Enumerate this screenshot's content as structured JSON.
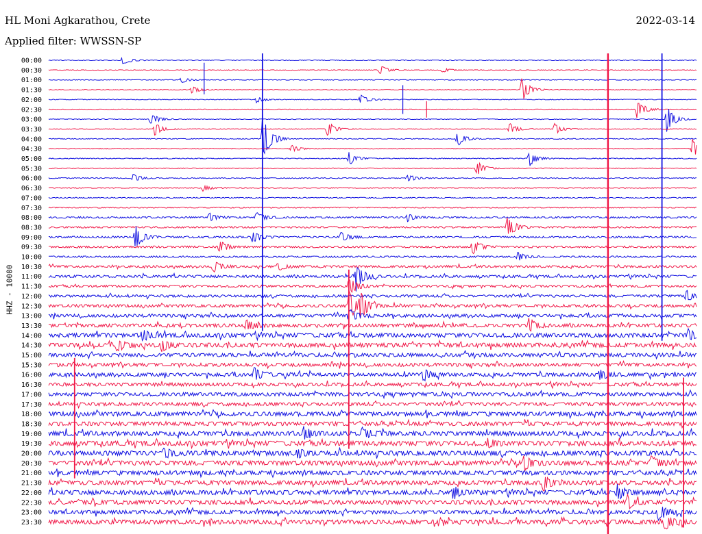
{
  "header": {
    "station": "HL Moni Agkarathou, Crete",
    "date": "2022-03-14",
    "filter": "Applied filter: WWSSN-SP",
    "channel": "HHZ - 10000"
  },
  "colors": {
    "even_row": "#1010e0",
    "odd_row": "#f01848"
  },
  "chart_data": {
    "type": "line",
    "title": "HL Moni Agkarathou, Crete",
    "xlabel": "",
    "ylabel": "HHZ - 10000",
    "row_labels": [
      "00:00",
      "00:30",
      "01:00",
      "01:30",
      "02:00",
      "02:30",
      "03:00",
      "03:30",
      "04:00",
      "04:30",
      "05:00",
      "05:30",
      "06:00",
      "06:30",
      "07:00",
      "07:30",
      "08:00",
      "08:30",
      "09:00",
      "09:30",
      "10:00",
      "10:30",
      "11:00",
      "11:30",
      "12:00",
      "12:30",
      "13:00",
      "13:30",
      "14:00",
      "14:30",
      "15:00",
      "15:30",
      "16:00",
      "16:30",
      "17:00",
      "17:30",
      "18:00",
      "18:30",
      "19:00",
      "19:30",
      "20:00",
      "20:30",
      "21:00",
      "21:30",
      "22:00",
      "22:30",
      "23:00",
      "23:30"
    ],
    "row_minutes": 30,
    "noise_level": [
      0.5,
      0.5,
      0.5,
      0.5,
      0.5,
      0.5,
      0.5,
      0.5,
      0.6,
      0.6,
      0.6,
      0.6,
      0.7,
      0.7,
      0.7,
      0.8,
      1.2,
      1.2,
      1.4,
      1.4,
      1.2,
      1.6,
      1.8,
      1.6,
      1.8,
      2.0,
      2.2,
      2.4,
      3.0,
      3.0,
      2.6,
      2.4,
      2.6,
      2.4,
      2.6,
      2.4,
      3.0,
      2.8,
      3.2,
      3.4,
      3.4,
      3.2,
      3.0,
      3.0,
      3.2,
      3.0,
      2.8,
      3.0
    ],
    "events": [
      {
        "row": 0,
        "minute": 3.4,
        "amp": 8
      },
      {
        "row": 1,
        "minute": 15.3,
        "amp": 9
      },
      {
        "row": 1,
        "minute": 18.2,
        "amp": 4
      },
      {
        "row": 2,
        "minute": 6.1,
        "amp": 5
      },
      {
        "row": 3,
        "minute": 6.6,
        "amp": 6
      },
      {
        "row": 3,
        "minute": 21.9,
        "amp": 18
      },
      {
        "row": 4,
        "minute": 9.6,
        "amp": 5
      },
      {
        "row": 4,
        "minute": 14.4,
        "amp": 8
      },
      {
        "row": 5,
        "minute": 27.2,
        "amp": 16
      },
      {
        "row": 6,
        "minute": 4.7,
        "amp": 10
      },
      {
        "row": 6,
        "minute": 28.6,
        "amp": 22
      },
      {
        "row": 7,
        "minute": 4.9,
        "amp": 10
      },
      {
        "row": 7,
        "minute": 12.9,
        "amp": 12
      },
      {
        "row": 7,
        "minute": 21.3,
        "amp": 10
      },
      {
        "row": 7,
        "minute": 23.4,
        "amp": 9
      },
      {
        "row": 8,
        "minute": 9.9,
        "amp": 40
      },
      {
        "row": 8,
        "minute": 18.9,
        "amp": 12
      },
      {
        "row": 9,
        "minute": 11.2,
        "amp": 6
      },
      {
        "row": 9,
        "minute": 29.8,
        "amp": 14
      },
      {
        "row": 10,
        "minute": 13.9,
        "amp": 10
      },
      {
        "row": 10,
        "minute": 22.2,
        "amp": 14
      },
      {
        "row": 11,
        "minute": 19.8,
        "amp": 12
      },
      {
        "row": 12,
        "minute": 3.9,
        "amp": 6
      },
      {
        "row": 12,
        "minute": 16.6,
        "amp": 6
      },
      {
        "row": 13,
        "minute": 7.1,
        "amp": 5
      },
      {
        "row": 16,
        "minute": 7.4,
        "amp": 7
      },
      {
        "row": 16,
        "minute": 9.6,
        "amp": 10
      },
      {
        "row": 16,
        "minute": 16.6,
        "amp": 6
      },
      {
        "row": 17,
        "minute": 21.2,
        "amp": 20
      },
      {
        "row": 18,
        "minute": 4.0,
        "amp": 18
      },
      {
        "row": 18,
        "minute": 9.4,
        "amp": 10
      },
      {
        "row": 18,
        "minute": 13.5,
        "amp": 8
      },
      {
        "row": 19,
        "minute": 7.9,
        "amp": 9
      },
      {
        "row": 19,
        "minute": 19.6,
        "amp": 12
      },
      {
        "row": 20,
        "minute": 21.7,
        "amp": 7
      },
      {
        "row": 21,
        "minute": 7.6,
        "amp": 9
      },
      {
        "row": 21,
        "minute": 10.6,
        "amp": 7
      },
      {
        "row": 22,
        "minute": 14.2,
        "amp": 25
      },
      {
        "row": 23,
        "minute": 13.9,
        "amp": 15
      },
      {
        "row": 24,
        "minute": 29.5,
        "amp": 10
      },
      {
        "row": 25,
        "minute": 13.9,
        "amp": 22
      },
      {
        "row": 25,
        "minute": 14.4,
        "amp": 20
      },
      {
        "row": 26,
        "minute": 13.9,
        "amp": 10
      },
      {
        "row": 27,
        "minute": 9.1,
        "amp": 10
      },
      {
        "row": 27,
        "minute": 22.2,
        "amp": 10
      },
      {
        "row": 28,
        "minute": 4.3,
        "amp": 9
      },
      {
        "row": 28,
        "minute": 29.6,
        "amp": 8
      },
      {
        "row": 29,
        "minute": 3.1,
        "amp": 10
      },
      {
        "row": 29,
        "minute": 5.2,
        "amp": 10
      },
      {
        "row": 32,
        "minute": 9.5,
        "amp": 10
      },
      {
        "row": 32,
        "minute": 17.3,
        "amp": 10
      },
      {
        "row": 32,
        "minute": 25.5,
        "amp": 9
      },
      {
        "row": 38,
        "minute": 11.8,
        "amp": 9
      },
      {
        "row": 38,
        "minute": 14.5,
        "amp": 9
      },
      {
        "row": 39,
        "minute": 20.3,
        "amp": 8
      },
      {
        "row": 40,
        "minute": 5.3,
        "amp": 9
      },
      {
        "row": 40,
        "minute": 11.5,
        "amp": 7
      },
      {
        "row": 41,
        "minute": 22.0,
        "amp": 10
      },
      {
        "row": 41,
        "minute": 27.9,
        "amp": 12
      },
      {
        "row": 43,
        "minute": 22.9,
        "amp": 12
      },
      {
        "row": 44,
        "minute": 18.7,
        "amp": 10
      },
      {
        "row": 44,
        "minute": 26.3,
        "amp": 12
      },
      {
        "row": 45,
        "minute": 26.8,
        "amp": 10
      },
      {
        "row": 46,
        "minute": 28.2,
        "amp": 14
      },
      {
        "row": 47,
        "minute": 28.5,
        "amp": 14
      }
    ],
    "spikes": [
      {
        "row": 2,
        "minute": 7.2,
        "up": 25,
        "down": 21
      },
      {
        "row": 4,
        "minute": 16.4,
        "up": 21,
        "down": 21
      },
      {
        "row": 5,
        "minute": 17.5,
        "up": 12,
        "down": 12
      }
    ],
    "long_vertical_lines": [
      {
        "minute": 9.9,
        "row_start": 0,
        "row_end": 27,
        "color": "blue"
      },
      {
        "minute": 28.4,
        "row_start": 0,
        "row_end": 28,
        "color": "blue"
      },
      {
        "minute": 25.9,
        "row_start": 0,
        "row_end": 48,
        "color": "red"
      },
      {
        "minute": 13.9,
        "row_start": 22,
        "row_end": 39,
        "color": "red"
      },
      {
        "minute": 1.2,
        "row_start": 31,
        "row_end": 42,
        "color": "red"
      },
      {
        "minute": 29.4,
        "row_start": 33,
        "row_end": 47,
        "color": "red"
      }
    ]
  }
}
